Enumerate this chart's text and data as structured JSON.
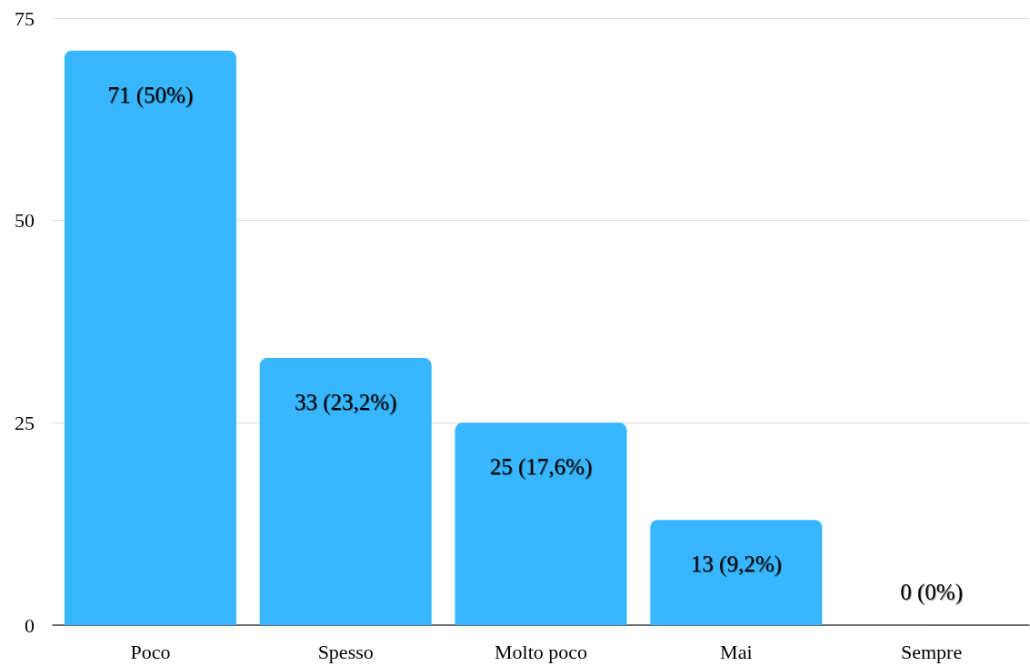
{
  "chart_data": {
    "type": "bar",
    "categories": [
      "Poco",
      "Spesso",
      "Molto poco",
      "Mai",
      "Sempre"
    ],
    "values": [
      71,
      33,
      25,
      13,
      0
    ],
    "value_labels": [
      "71 (50%)",
      "33 (23,2%)",
      "25 (17,6%)",
      "13 (9,2%)",
      "0 (0%)"
    ],
    "color": "#38b6ff",
    "ylim": [
      0,
      75
    ],
    "yticks": [
      0,
      25,
      50,
      75
    ],
    "grid": "y"
  }
}
